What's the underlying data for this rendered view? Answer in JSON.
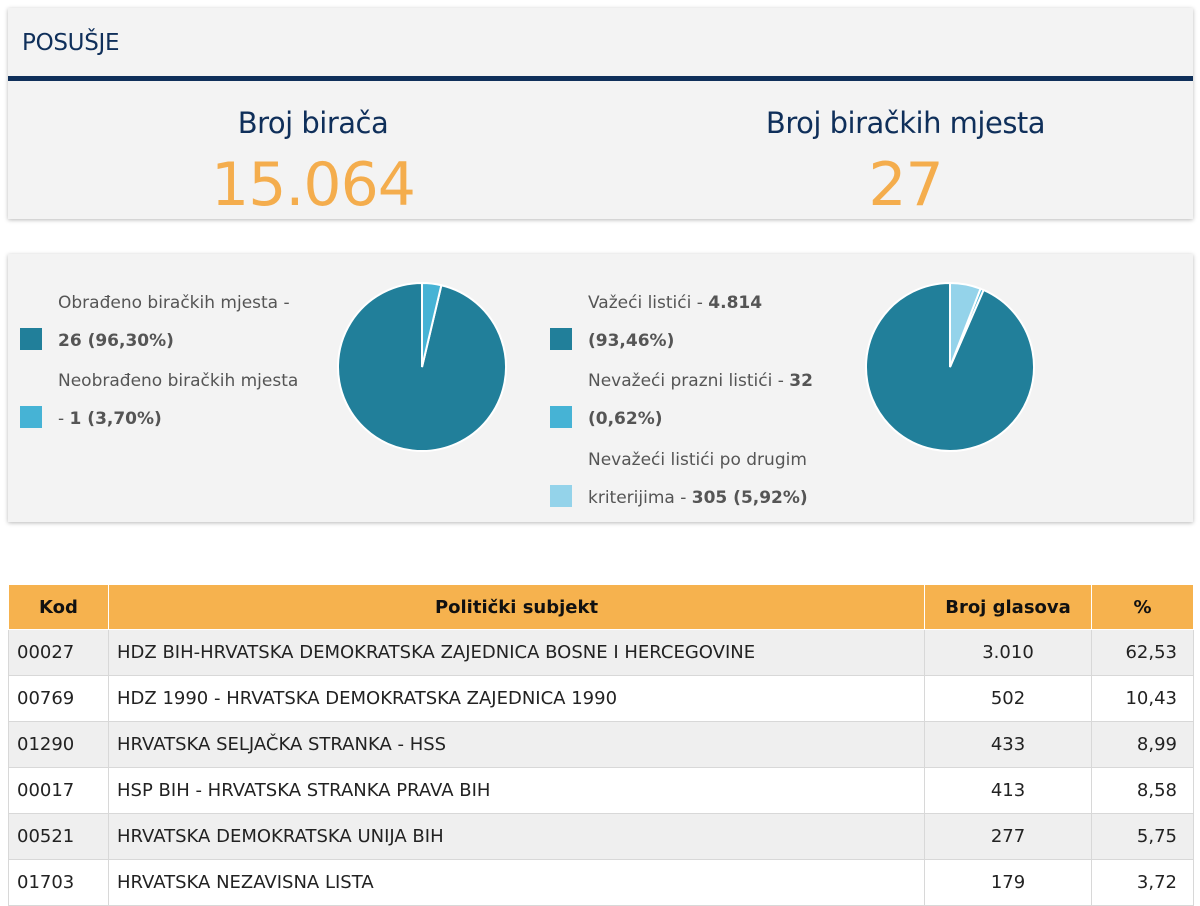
{
  "header": {
    "title": "POSUŠJE"
  },
  "stats": {
    "voters_label": "Broj birača",
    "voters_value": "15.064",
    "stations_label": "Broj biračkih mjesta",
    "stations_value": "27"
  },
  "processing": {
    "items": [
      {
        "label": "Obrađeno biračkih mjesta - ",
        "value": "26 (96,30%)",
        "color": "#217f9a",
        "fraction": 0.963
      },
      {
        "label": "Neobrađeno biračkih mjesta - ",
        "value": "1 (3,70%)",
        "color": "#46b3d5",
        "fraction": 0.037
      }
    ]
  },
  "ballots": {
    "items": [
      {
        "label": "Važeći listići - ",
        "value": "4.814 (93,46%)",
        "color": "#217f9a",
        "fraction": 0.9346
      },
      {
        "label": "Nevažeći prazni listići - ",
        "value": "32 (0,62%)",
        "color": "#46b3d5",
        "fraction": 0.0062
      },
      {
        "label": "Nevažeći listići po drugim kriterijima - ",
        "value": "305 (5,92%)",
        "color": "#94d3ea",
        "fraction": 0.0592
      }
    ]
  },
  "table": {
    "headers": {
      "code": "Kod",
      "party": "Politički subjekt",
      "votes": "Broj glasova",
      "pct": "%"
    },
    "rows": [
      {
        "code": "00027",
        "party": "HDZ BIH-HRVATSKA DEMOKRATSKA ZAJEDNICA BOSNE I HERCEGOVINE",
        "votes": "3.010",
        "pct": "62,53"
      },
      {
        "code": "00769",
        "party": "HDZ 1990 - HRVATSKA DEMOKRATSKA ZAJEDNICA 1990",
        "votes": "502",
        "pct": "10,43"
      },
      {
        "code": "01290",
        "party": "HRVATSKA SELJAČKA STRANKA - HSS",
        "votes": "433",
        "pct": "8,99"
      },
      {
        "code": "00017",
        "party": "HSP BIH - HRVATSKA STRANKA PRAVA BIH",
        "votes": "413",
        "pct": "8,58"
      },
      {
        "code": "00521",
        "party": "HRVATSKA DEMOKRATSKA UNIJA BIH",
        "votes": "277",
        "pct": "5,75"
      },
      {
        "code": "01703",
        "party": "HRVATSKA NEZAVISNA LISTA",
        "votes": "179",
        "pct": "3,72"
      }
    ]
  }
}
